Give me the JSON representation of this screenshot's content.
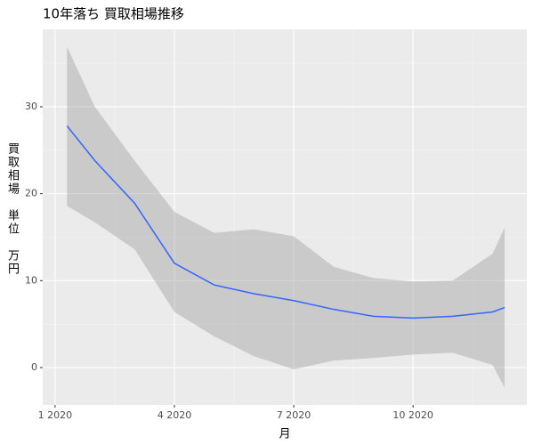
{
  "chart_data": {
    "type": "smooth",
    "title": "10年落ち 買取相場推移",
    "x_label": "月",
    "y_label": "買取相場　単位　万円",
    "x": [
      1.3,
      2,
      3,
      4,
      5,
      6,
      7,
      8,
      9,
      10,
      11,
      12,
      12.3
    ],
    "values": [
      27.8,
      23.8,
      18.9,
      12.0,
      9.5,
      8.5,
      7.7,
      6.7,
      5.9,
      5.7,
      5.9,
      6.4,
      6.9
    ],
    "lower": [
      18.6,
      16.7,
      13.6,
      6.4,
      3.6,
      1.3,
      -0.2,
      0.8,
      1.1,
      1.5,
      1.7,
      0.3,
      -2.3
    ],
    "upper": [
      36.9,
      30.0,
      23.8,
      17.9,
      15.5,
      15.9,
      15.1,
      11.6,
      10.3,
      9.9,
      10.0,
      13.1,
      16.1
    ],
    "color": "#3366ff",
    "band_color": "#999999",
    "panel_color": "#ebebeb",
    "xlim": [
      0.69,
      12.86
    ],
    "ylim": [
      -4.3,
      38.9
    ],
    "xticks": [
      {
        "value": 1,
        "label": "1 2020"
      },
      {
        "value": 4,
        "label": "4 2020"
      },
      {
        "value": 7,
        "label": "7 2020"
      },
      {
        "value": 10,
        "label": "10 2020"
      }
    ],
    "minor_xticks": [
      2.5,
      5.5,
      8.5,
      11.5
    ],
    "yticks": [
      0,
      10,
      20,
      30
    ],
    "minor_yticks": [
      -5,
      5,
      15,
      25,
      35
    ],
    "grid": true
  }
}
